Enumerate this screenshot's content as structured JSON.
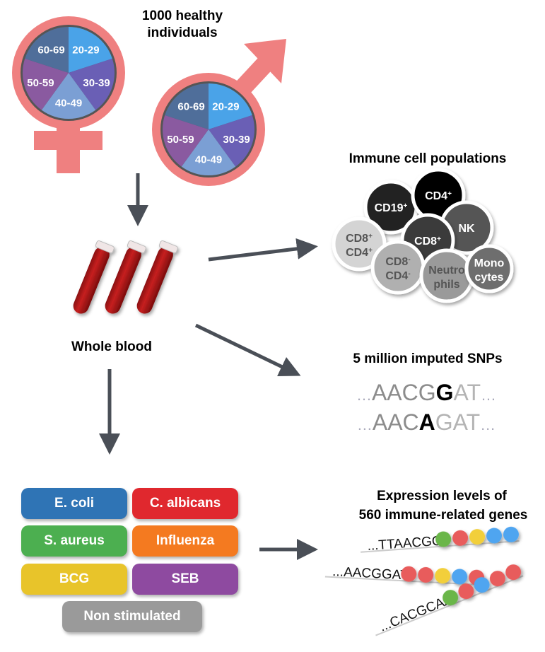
{
  "cohort": {
    "title_line1": "1000 healthy",
    "title_line2": "individuals"
  },
  "age_groups": [
    {
      "label": "20-29",
      "color": "#4aa3e8"
    },
    {
      "label": "30-39",
      "color": "#6a5fb5"
    },
    {
      "label": "40-49",
      "color": "#7b9fd4"
    },
    {
      "label": "50-59",
      "color": "#8a5aa0"
    },
    {
      "label": "60-69",
      "color": "#4f6e9a"
    }
  ],
  "symbol_color": "#ef8080",
  "arrow_color": "#4a4f57",
  "blood": {
    "label": "Whole blood"
  },
  "immune": {
    "title": "Immune cell populations",
    "cells": [
      {
        "label": "CD19",
        "sup": "+",
        "color": "#222222"
      },
      {
        "label": "CD4",
        "sup": "+",
        "color": "#050505"
      },
      {
        "label": "NK",
        "sup": "",
        "color": "#555555"
      },
      {
        "label": "CD8",
        "sup": "+",
        "color": "#3a3a3a"
      },
      {
        "label": "CD8",
        "sup": "+",
        "label2": "CD4",
        "sup2": "+",
        "color": "#d4d4d4"
      },
      {
        "label": "CD8",
        "sup": "-",
        "label2": "CD4",
        "sup2": "-",
        "color": "#b0b0b0"
      },
      {
        "label": "Neutro",
        "sup": "",
        "label2": "phils",
        "sup2": "",
        "color": "#9a9a9a"
      },
      {
        "label": "Mono",
        "sup": "",
        "label2": "cytes",
        "sup2": "",
        "color": "#6e6e6e"
      }
    ]
  },
  "snps": {
    "title": "5 million imputed SNPs",
    "seq1": {
      "pre": "AACG",
      "variant": "G",
      "post": "AT"
    },
    "seq2": {
      "pre": "AAC",
      "variant": "A",
      "post": "GAT"
    }
  },
  "expression": {
    "title_line1": "Expression levels of",
    "title_line2": "560 immune-related genes",
    "seqs": [
      "...TTAACGG",
      "...AACGGAT",
      "...CACGCAA"
    ],
    "dots": [
      [
        "#6ab64a",
        "#e85c5c",
        "#f2cf3a",
        "#4fa5f0",
        "#4fa5f0"
      ],
      [
        "#e85c5c",
        "#e85c5c",
        "#f2cf3a",
        "#4fa5f0",
        "#e85c5c"
      ],
      [
        "#6ab64a",
        "#e85c5c",
        "#4fa5f0",
        "#e85c5c",
        "#e85c5c"
      ]
    ]
  },
  "stimuli": [
    {
      "label": "E. coli",
      "color": "#2f74b5"
    },
    {
      "label": "C. albicans",
      "color": "#e0282e"
    },
    {
      "label": "S. aureus",
      "color": "#4caf50"
    },
    {
      "label": "Influenza",
      "color": "#f47a20"
    },
    {
      "label": "BCG",
      "color": "#e8c42a"
    },
    {
      "label": "SEB",
      "color": "#8e4aa0"
    },
    {
      "label": "Non stimulated",
      "color": "#9a9a9a"
    }
  ]
}
